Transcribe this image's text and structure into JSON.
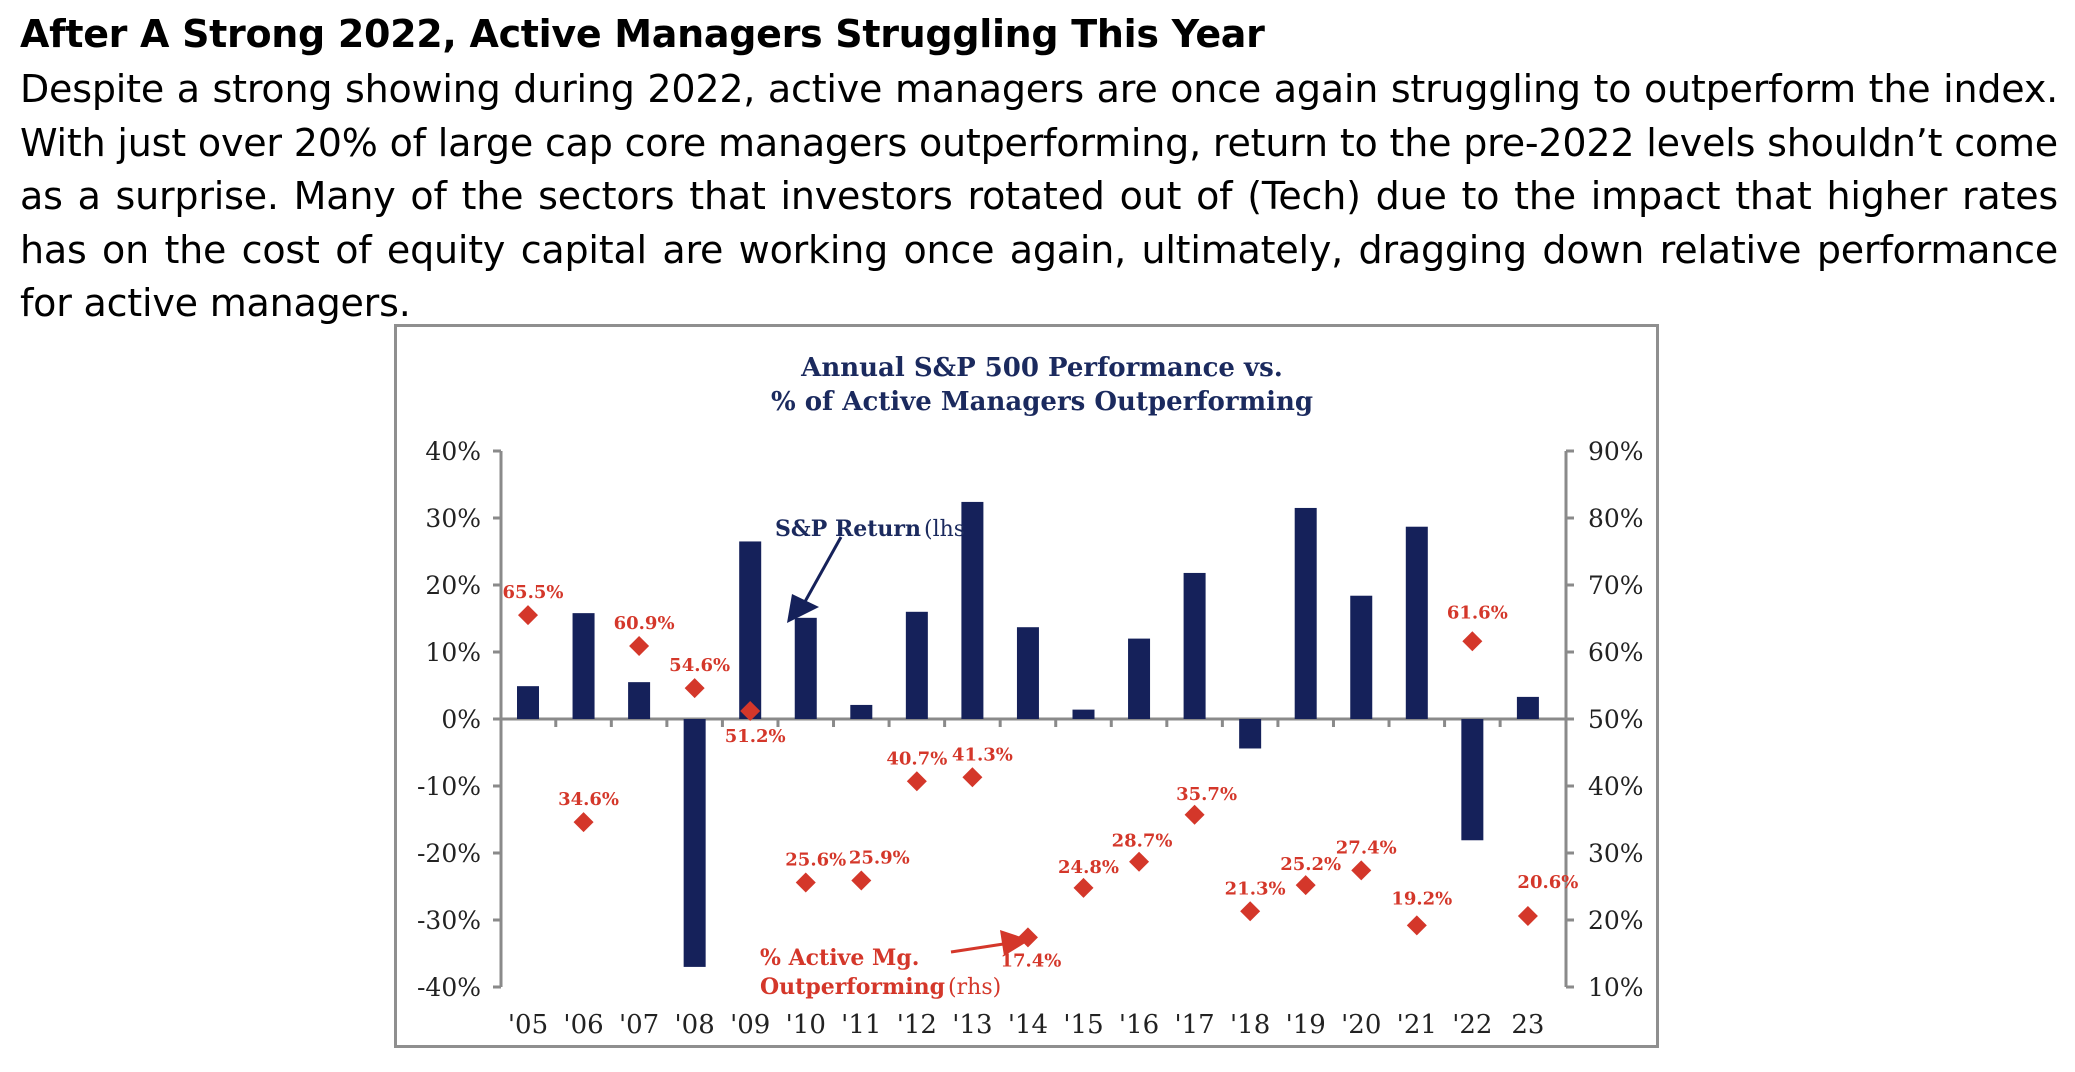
{
  "header": {
    "title": "After A Strong 2022, Active Managers Struggling This Year",
    "body": "Despite a strong showing during 2022, active managers are once again struggling to outperform the index. With just over 20% of large cap core managers outperforming, return to the pre-2022 levels shouldn’t come as a surprise. Many of the sectors that investors rotated out of (Tech) due to the impact that higher rates has on the cost of equity capital are working once again, ultimately, dragging down relative performance for active managers."
  },
  "colors": {
    "bar": "#15215a",
    "marker": "#d4372a",
    "title": "#1b2a5e",
    "axis": "#8a8a8a"
  },
  "chart_data": {
    "type": "bar",
    "title_line1": "Annual S&P 500 Performance vs.",
    "title_line2": "% of Active Managers Outperforming",
    "categories": [
      "'05",
      "'06",
      "'07",
      "'08",
      "'09",
      "'10",
      "'11",
      "'12",
      "'13",
      "'14",
      "'15",
      "'16",
      "'17",
      "'18",
      "'19",
      "'20",
      "'21",
      "'22",
      "23"
    ],
    "series": [
      {
        "name": "S&P Return (lhs)",
        "type": "bar",
        "axis": "left",
        "values": [
          4.9,
          15.8,
          5.5,
          -37.0,
          26.5,
          15.1,
          2.1,
          16.0,
          32.4,
          13.7,
          1.4,
          12.0,
          21.8,
          -4.4,
          31.5,
          18.4,
          28.7,
          -18.1,
          3.3
        ]
      },
      {
        "name": "% Active Mg. Outperforming (rhs)",
        "type": "scatter",
        "marker": "diamond",
        "axis": "right",
        "values": [
          65.5,
          34.6,
          60.9,
          54.6,
          51.2,
          25.6,
          25.9,
          40.7,
          41.3,
          17.4,
          24.8,
          28.7,
          35.7,
          21.3,
          25.2,
          27.4,
          19.2,
          61.6,
          20.6
        ],
        "labels": [
          "65.5%",
          "34.6%",
          "60.9%",
          "54.6%",
          "51.2%",
          "25.6%",
          "25.9%",
          "40.7%",
          "41.3%",
          "17.4%",
          "24.8%",
          "28.7%",
          "35.7%",
          "21.3%",
          "25.2%",
          "27.4%",
          "19.2%",
          "61.6%",
          "20.6%"
        ]
      }
    ],
    "left_axis": {
      "ylim": [
        -40,
        40
      ],
      "ticks": [
        "40%",
        "30%",
        "20%",
        "10%",
        "0%",
        "-10%",
        "-20%",
        "-30%",
        "-40%"
      ]
    },
    "right_axis": {
      "ylim": [
        10,
        90
      ],
      "ticks": [
        "90%",
        "80%",
        "70%",
        "60%",
        "50%",
        "40%",
        "30%",
        "20%",
        "10%"
      ]
    },
    "annotations": {
      "bar_label_bold": "S&P Return",
      "bar_label_suffix": "(lhs",
      "marker_label_line1": "% Active Mg.",
      "marker_label_line2_bold": "Outperforming",
      "marker_label_line2_suffix": "(rhs)"
    },
    "grid": false,
    "legend": "none (inline annotations)"
  }
}
